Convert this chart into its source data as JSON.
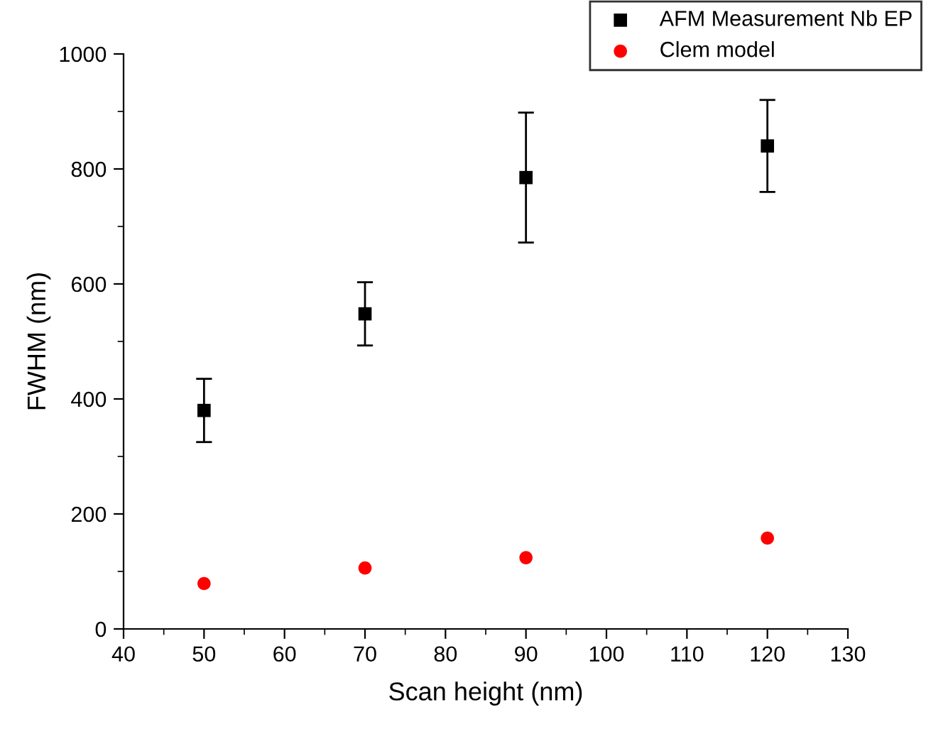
{
  "chart_data": {
    "type": "scatter",
    "xlabel": "Scan height (nm)",
    "ylabel": "FWHM (nm)",
    "x": [
      50,
      70,
      90,
      120
    ],
    "series": [
      {
        "name": "AFM Measurement Nb EP",
        "color": "#000000",
        "marker": "square",
        "values": [
          380,
          548,
          785,
          840
        ],
        "errors": [
          55,
          55,
          113,
          80
        ]
      },
      {
        "name": "Clem model",
        "color": "#ff0000",
        "marker": "circle",
        "values": [
          79,
          106,
          124,
          158
        ]
      }
    ],
    "xlim": [
      40,
      130
    ],
    "xticks": [
      40,
      50,
      60,
      70,
      80,
      90,
      100,
      110,
      120,
      130
    ],
    "ylim": [
      0,
      1000
    ],
    "yticks": [
      0,
      200,
      400,
      600,
      800,
      1000
    ],
    "grid": false,
    "legend": "top right"
  }
}
